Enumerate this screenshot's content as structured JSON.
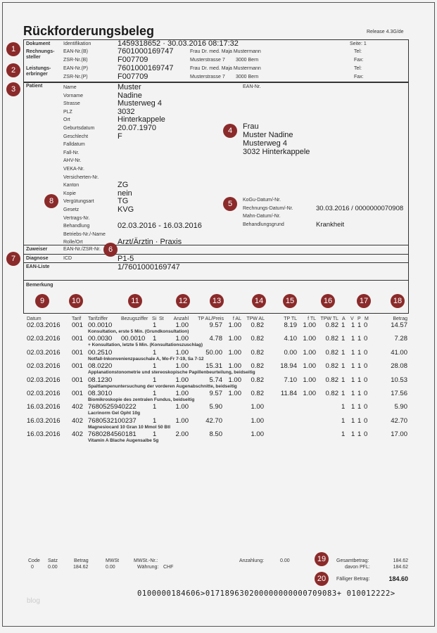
{
  "title": "Rückforderungsbeleg",
  "release": "Release 4.3G/de",
  "header": {
    "dokument": "Dokument",
    "identifikation": "Identifikation",
    "id_value": "1459318652 · 30.03.2016 08:17:32",
    "seite": "Seite: 1",
    "rechnungssteller": "Rechnungs-\nsteller",
    "ean_b": "EAN-Nr.(B)",
    "ean_b_value": "7601000169747",
    "zsr_b": "ZSR-Nr.(B)",
    "zsr_b_value": "F007709",
    "leistungserbringer": "Leistungs-\nerbringer",
    "ean_p": "EAN-Nr.(P)",
    "ean_p_value": "7601000169747",
    "zsr_p": "ZSR-Nr.(P)",
    "zsr_p_value": "F007709",
    "name": "Frau Dr. med. Maja Mustermann",
    "street": "Musterstrasse 7",
    "city": "3000 Bern",
    "tel": "Tel:",
    "fax": "Fax:"
  },
  "patient": {
    "label": "Patient",
    "fields": [
      [
        "Name",
        "Muster"
      ],
      [
        "Vorname",
        "Nadine"
      ],
      [
        "Strasse",
        "Musterweg 4"
      ],
      [
        "PLZ",
        "3032"
      ],
      [
        "Ort",
        "Hinterkappele"
      ],
      [
        "Geburtsdatum",
        "20.07.1970"
      ],
      [
        "Geschlecht",
        "F"
      ],
      [
        "Falldatum",
        ""
      ],
      [
        "Fall-Nr.",
        ""
      ],
      [
        "AHV-Nr.",
        ""
      ],
      [
        "VEKA-Nr.",
        ""
      ],
      [
        "Versicherten-Nr.",
        ""
      ],
      [
        "Kanton",
        "ZG"
      ],
      [
        "Kopie",
        "nein"
      ],
      [
        "Vergütungsart",
        "TG"
      ],
      [
        "Gesetz",
        "KVG"
      ],
      [
        "Vertrags-Nr.",
        ""
      ],
      [
        "Behandlung",
        "02.03.2016 - 16.03.2016"
      ],
      [
        "Betriebs-Nr./-Name",
        ""
      ],
      [
        "Rolle/Ort",
        "Arzt/Ärztin · Praxis"
      ]
    ],
    "ean_label": "EAN-Nr.",
    "address": [
      "Frau",
      "Muster Nadine",
      "Musterweg 4",
      "3032 Hinterkappele"
    ],
    "right_fields": [
      [
        "KoGu-Datum/-Nr.",
        ""
      ],
      [
        "Rechnungs-Datum/-Nr.",
        "30.03.2016 / 0000000070908"
      ],
      [
        "Mahn-Datum/-Nr.",
        ""
      ],
      [
        "Behandlungsgrund",
        "Krankheit"
      ]
    ]
  },
  "zuweiser": {
    "label": "Zuweiser",
    "sub": "EAN-Nr./ZSR-Nr."
  },
  "diagnose": {
    "label": "Diagnose",
    "sub": "ICD",
    "value": "P1-5"
  },
  "ean_liste": {
    "label": "EAN-Liste",
    "value": "1/7601000169747"
  },
  "bemerkung": {
    "label": "Bemerkung"
  },
  "marker_color": "#8b2a2a",
  "table": {
    "headers": [
      "Datum",
      "Tarif",
      "Tarifziffer",
      "Bezugsziffer",
      "Si",
      "St",
      "Anzahl",
      "TP AL/Preis",
      "f AL",
      "TPW AL",
      "TP TL",
      "f TL",
      "TPW TL",
      "A",
      "V",
      "P",
      "M",
      "Betrag"
    ],
    "rows": [
      {
        "datum": "02.03.2016",
        "tarif": "001",
        "ziffer": "00.0010",
        "bezug": "",
        "si": "1",
        "anzahl": "1.00",
        "tpal": "9.57",
        "fal": "1.00",
        "tpwal": "0.82",
        "tptl": "8.19",
        "ftl": "1.00",
        "tpwtl": "0.82",
        "a": "1",
        "v": "1",
        "p": "1",
        "m": "0",
        "betrag": "14.57",
        "desc": "Konsultation, erste 5 Min. (Grundkonsultation)"
      },
      {
        "datum": "02.03.2016",
        "tarif": "001",
        "ziffer": "00.0030",
        "bezug": "00.0010",
        "si": "1",
        "anzahl": "1.00",
        "tpal": "4.78",
        "fal": "1.00",
        "tpwal": "0.82",
        "tptl": "4.10",
        "ftl": "1.00",
        "tpwtl": "0.82",
        "a": "1",
        "v": "1",
        "p": "1",
        "m": "0",
        "betrag": "7.28",
        "desc": "+ Konsultation, letzte 5 Min. (Konsultationszuschlag)"
      },
      {
        "datum": "02.03.2016",
        "tarif": "001",
        "ziffer": "00.2510",
        "bezug": "",
        "si": "1",
        "anzahl": "1.00",
        "tpal": "50.00",
        "fal": "1.00",
        "tpwal": "0.82",
        "tptl": "0.00",
        "ftl": "1.00",
        "tpwtl": "0.82",
        "a": "1",
        "v": "1",
        "p": "1",
        "m": "0",
        "betrag": "41.00",
        "desc": "Notfall-Inkonvenienzpauschale A, Mo-Fr 7-19, Sa 7-12"
      },
      {
        "datum": "02.03.2016",
        "tarif": "001",
        "ziffer": "08.0220",
        "bezug": "",
        "si": "1",
        "anzahl": "1.00",
        "tpal": "15.31",
        "fal": "1.00",
        "tpwal": "0.82",
        "tptl": "18.94",
        "ftl": "1.00",
        "tpwtl": "0.82",
        "a": "1",
        "v": "1",
        "p": "1",
        "m": "0",
        "betrag": "28.08",
        "desc": "Applanationstonometrie und stereoskopische Papillenbeurteilung, beidseitig"
      },
      {
        "datum": "02.03.2016",
        "tarif": "001",
        "ziffer": "08.1230",
        "bezug": "",
        "si": "1",
        "anzahl": "1.00",
        "tpal": "5.74",
        "fal": "1.00",
        "tpwal": "0.82",
        "tptl": "7.10",
        "ftl": "1.00",
        "tpwtl": "0.82",
        "a": "1",
        "v": "1",
        "p": "1",
        "m": "0",
        "betrag": "10.53",
        "desc": "Spaltlampenuntersuchung der vorderen Augenabschnitte, beidseitig"
      },
      {
        "datum": "02.03.2016",
        "tarif": "001",
        "ziffer": "08.3010",
        "bezug": "",
        "si": "1",
        "anzahl": "1.00",
        "tpal": "9.57",
        "fal": "1.00",
        "tpwal": "0.82",
        "tptl": "11.84",
        "ftl": "1.00",
        "tpwtl": "0.82",
        "a": "1",
        "v": "1",
        "p": "1",
        "m": "0",
        "betrag": "17.56",
        "desc": "Biomikroskopie des zentralen Fundus, beidseitig"
      },
      {
        "datum": "16.03.2016",
        "tarif": "402",
        "ziffer": "7680525940222",
        "bezug": "",
        "si": "1",
        "anzahl": "1.00",
        "tpal": "5.90",
        "fal": "",
        "tpwal": "1.00",
        "tptl": "",
        "ftl": "",
        "tpwtl": "",
        "a": "1",
        "v": "1",
        "p": "1",
        "m": "0",
        "betrag": "5.90",
        "desc": "Lacrinorm Gel Opht 10g"
      },
      {
        "datum": "16.03.2016",
        "tarif": "402",
        "ziffer": "7680532100237",
        "bezug": "",
        "si": "1",
        "anzahl": "1.00",
        "tpal": "42.70",
        "fal": "",
        "tpwal": "1.00",
        "tptl": "",
        "ftl": "",
        "tpwtl": "",
        "a": "1",
        "v": "1",
        "p": "1",
        "m": "0",
        "betrag": "42.70",
        "desc": "Magnesiocard 10 Gran 10 Mmol 50 Btl"
      },
      {
        "datum": "16.03.2016",
        "tarif": "402",
        "ziffer": "7680284560181",
        "bezug": "",
        "si": "1",
        "anzahl": "2.00",
        "tpal": "8.50",
        "fal": "",
        "tpwal": "1.00",
        "tptl": "",
        "ftl": "",
        "tpwtl": "",
        "a": "1",
        "v": "1",
        "p": "1",
        "m": "0",
        "betrag": "17.00",
        "desc": "Vitamin A Blache Augensalbe 5g"
      }
    ]
  },
  "footer": {
    "code": "Code",
    "code_v": "0",
    "satz": "Satz",
    "satz_v": "0.00",
    "betrag": "Betrag",
    "betrag_v": "184.62",
    "mwst": "MWSt",
    "mwst_v": "0.00",
    "mwst_nr": "MWSt.-Nr.:",
    "waehrung": "Währung:",
    "waehrung_v": "CHF",
    "anzahlung": "Anzahlung:",
    "anzahlung_v": "0.00",
    "gesamt": "Gesamtbetrag:",
    "gesamt_v": "184.62",
    "pfl": "davon PFL:",
    "pfl_v": "184.62",
    "faellig": "Fälliger Betrag:",
    "faellig_v": "184.60",
    "codeline": "0100000184606>017189630200000000000709083+ 010012222>"
  },
  "watermark": "blog"
}
